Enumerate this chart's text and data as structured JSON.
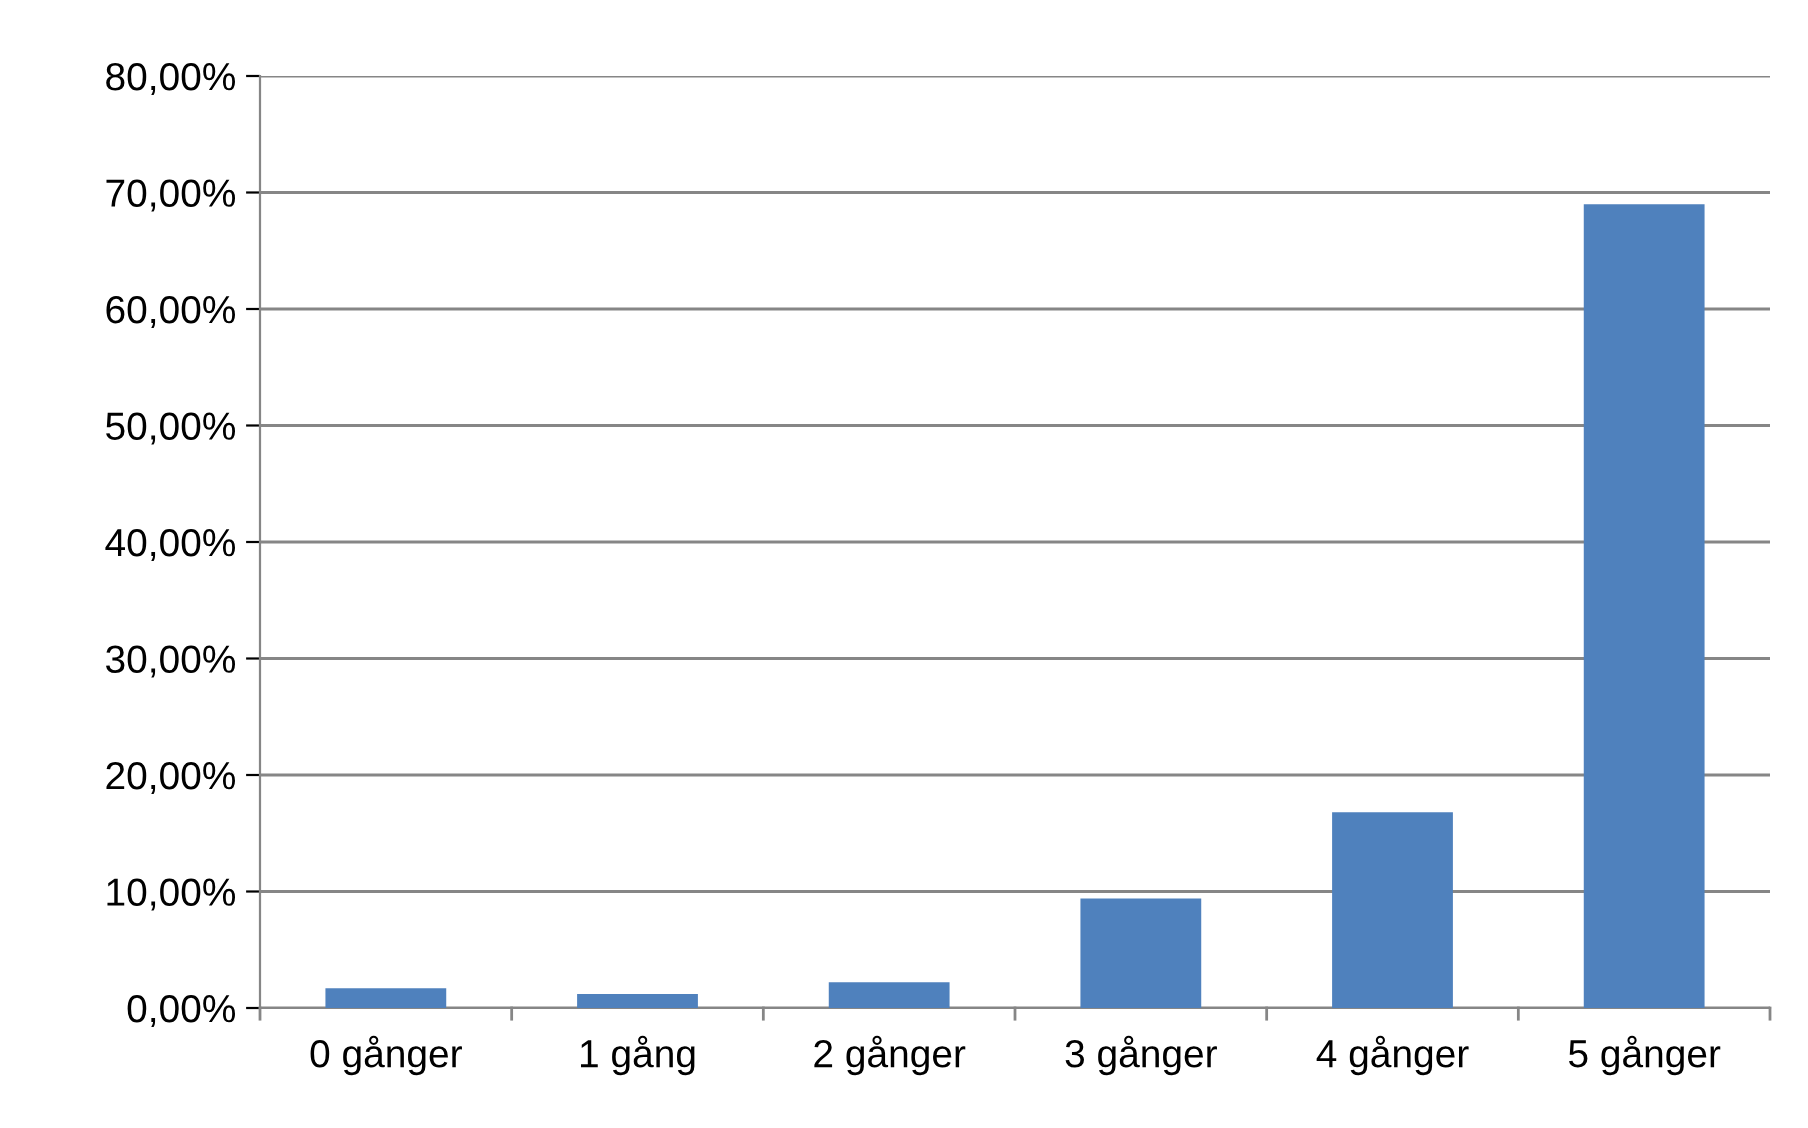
{
  "chart_data": {
    "type": "bar",
    "categories": [
      "0 gånger",
      "1 gång",
      "2 gånger",
      "3 gånger",
      "4 gånger",
      "5 gånger"
    ],
    "values": [
      1.7,
      1.2,
      2.2,
      9.4,
      16.8,
      69.0
    ],
    "color": "#4f81bd",
    "ylim": [
      0,
      80
    ],
    "yticks": [
      {
        "value": 0,
        "label": "0,00%"
      },
      {
        "value": 10,
        "label": "10,00%"
      },
      {
        "value": 20,
        "label": "20,00%"
      },
      {
        "value": 30,
        "label": "30,00%"
      },
      {
        "value": 40,
        "label": "40,00%"
      },
      {
        "value": 50,
        "label": "50,00%"
      },
      {
        "value": 60,
        "label": "60,00%"
      },
      {
        "value": 70,
        "label": "70,00%"
      },
      {
        "value": 80,
        "label": "80,00%"
      }
    ],
    "grid": "y",
    "legend": false
  }
}
